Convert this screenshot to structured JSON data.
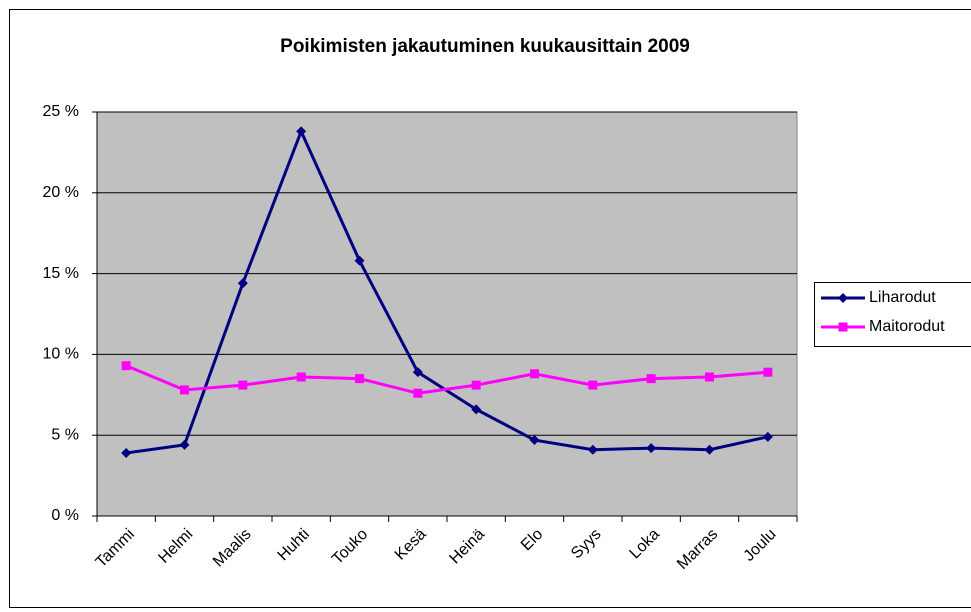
{
  "chart_data": {
    "type": "line",
    "title": "Poikimisten jakautuminen kuukausittain 2009",
    "categories": [
      "Tammi",
      "Helmi",
      "Maalis",
      "Huhti",
      "Touko",
      "Kesä",
      "Heinä",
      "Elo",
      "Syys",
      "Loka",
      "Marras",
      "Joulu"
    ],
    "series": [
      {
        "name": "Liharodut",
        "color": "#000080",
        "marker": "diamond",
        "values": [
          3.9,
          4.4,
          14.4,
          23.8,
          15.8,
          8.9,
          6.6,
          4.7,
          4.1,
          4.2,
          4.1,
          4.9
        ]
      },
      {
        "name": "Maitorodut",
        "color": "#ff00ff",
        "marker": "square",
        "values": [
          9.3,
          7.8,
          8.1,
          8.6,
          8.5,
          7.6,
          8.1,
          8.8,
          8.1,
          8.5,
          8.6,
          8.9
        ]
      }
    ],
    "ylim": [
      0,
      25
    ],
    "yticks": [
      {
        "value": 0,
        "label": "0 %"
      },
      {
        "value": 5,
        "label": "5 %"
      },
      {
        "value": 10,
        "label": "10 %"
      },
      {
        "value": 15,
        "label": "15 %"
      },
      {
        "value": 20,
        "label": "20 %"
      },
      {
        "value": 25,
        "label": "25 %"
      }
    ],
    "grid": true,
    "legend": "right",
    "plot_background": "#c0c0c0"
  }
}
